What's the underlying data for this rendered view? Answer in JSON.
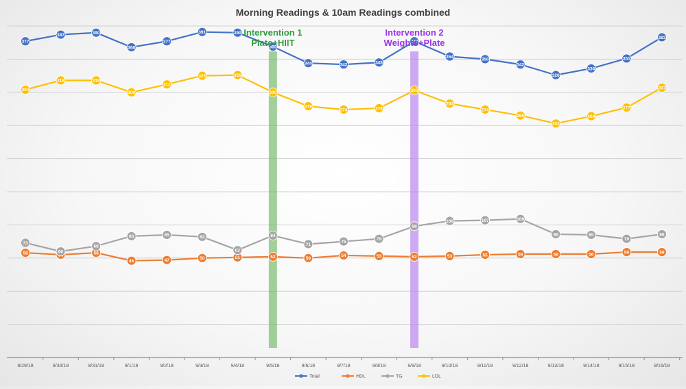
{
  "chart_data": {
    "type": "line",
    "title": "Morning Readings & 10am Readings combined",
    "xlabel": "",
    "ylabel": "",
    "ylim": [
      -100,
      400
    ],
    "grid": true,
    "legend_position": "bottom",
    "categories": [
      "8/29/18",
      "8/30/18",
      "8/31/18",
      "9/1/18",
      "9/2/18",
      "9/3/18",
      "9/4/18",
      "9/5/18",
      "9/6/18",
      "9/7/18",
      "9/8/18",
      "9/9/18",
      "9/10/18",
      "9/11/18",
      "9/12/18",
      "9/13/18",
      "9/14/18",
      "9/15/18",
      "9/16/18"
    ],
    "series": [
      {
        "name": "Total",
        "color": "#4472c4",
        "values": [
          377,
          387,
          390,
          368,
          377,
          391,
          390,
          369,
          344,
          342,
          345,
          377,
          354,
          350,
          342,
          326,
          336,
          351,
          383
        ]
      },
      {
        "name": "HDL",
        "color": "#ed7d31",
        "values": [
          58,
          55,
          58,
          46,
          47,
          50,
          51,
          52,
          50,
          54,
          53,
          52,
          53,
          55,
          56,
          56,
          56,
          59,
          59
        ]
      },
      {
        "name": "TG",
        "color": "#a5a5a5",
        "values": [
          73,
          60,
          68,
          83,
          85,
          82,
          62,
          84,
          71,
          75,
          79,
          98,
          106,
          107,
          109,
          86,
          85,
          79,
          86
        ]
      },
      {
        "name": "LDL",
        "color": "#ffc000",
        "values": [
          304,
          318,
          318,
          300,
          312,
          325,
          326,
          300,
          279,
          274,
          276,
          303,
          283,
          274,
          265,
          253,
          264,
          277,
          307
        ]
      }
    ],
    "annotations": [
      {
        "category": "9/5/18",
        "line1": "Intervention 1",
        "line2": "Plate+HIIT",
        "color": "#70b865",
        "text_color": "#2e9e3e"
      },
      {
        "category": "9/9/18",
        "line1": "Intervention 2",
        "line2": "Weights+Plate",
        "color": "#b77ef0",
        "text_color": "#9a35e8"
      }
    ]
  }
}
